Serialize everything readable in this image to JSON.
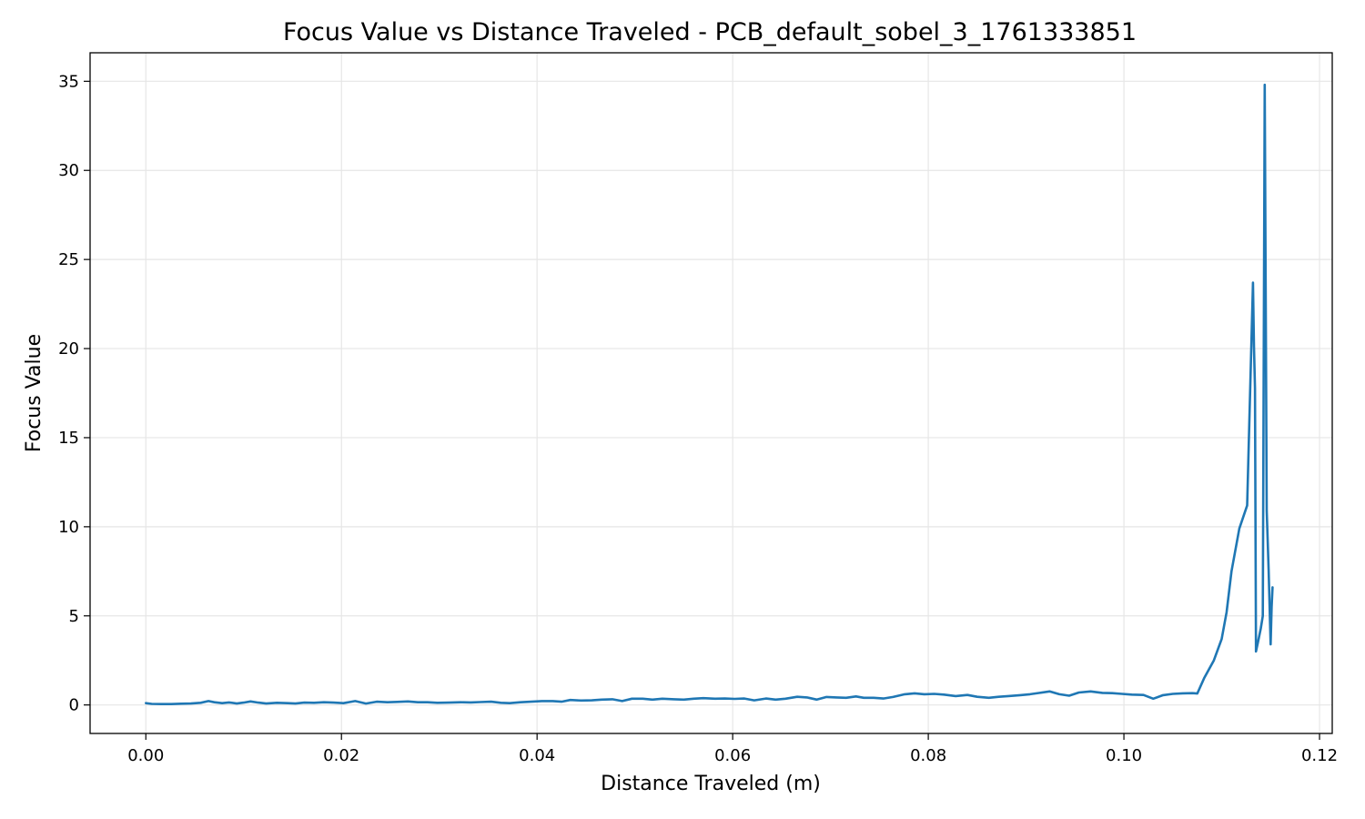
{
  "chart_data": {
    "type": "line",
    "title": "Focus Value vs Distance Traveled - PCB_default_sobel_3_1761333851",
    "xlabel": "Distance Traveled (m)",
    "ylabel": "Focus Value",
    "xlim": [
      -0.0057,
      0.1213
    ],
    "ylim": [
      -1.6,
      36.6
    ],
    "grid": true,
    "x_ticks": [
      0.0,
      0.02,
      0.04,
      0.06,
      0.08,
      0.1,
      0.12
    ],
    "x_tick_labels": [
      "0.00",
      "0.02",
      "0.04",
      "0.06",
      "0.08",
      "0.10",
      "0.12"
    ],
    "y_ticks": [
      0,
      5,
      10,
      15,
      20,
      25,
      30,
      35
    ],
    "y_tick_labels": [
      "0",
      "5",
      "10",
      "15",
      "20",
      "25",
      "30",
      "35"
    ],
    "colors": {
      "line": "#1f77b4",
      "grid": "#e6e6e6",
      "axes": "#000000"
    },
    "series": [
      {
        "x": [
          0.0,
          0.0006,
          0.0016,
          0.0026,
          0.0036,
          0.0046,
          0.0056,
          0.0064,
          0.007,
          0.0078,
          0.0085,
          0.0093,
          0.01,
          0.0107,
          0.0115,
          0.0123,
          0.0134,
          0.0145,
          0.0153,
          0.0162,
          0.0172,
          0.0182,
          0.0192,
          0.0202,
          0.0214,
          0.0225,
          0.0236,
          0.0247,
          0.0257,
          0.0268,
          0.0278,
          0.0288,
          0.0298,
          0.031,
          0.0322,
          0.0332,
          0.0342,
          0.0353,
          0.0363,
          0.0372,
          0.0383,
          0.0394,
          0.0405,
          0.0416,
          0.0425,
          0.0434,
          0.0445,
          0.0456,
          0.0466,
          0.0477,
          0.0487,
          0.0497,
          0.0508,
          0.0518,
          0.0528,
          0.054,
          0.055,
          0.056,
          0.057,
          0.0582,
          0.0592,
          0.0602,
          0.0612,
          0.0622,
          0.0634,
          0.0644,
          0.0654,
          0.0666,
          0.0676,
          0.0686,
          0.0696,
          0.0706,
          0.0716,
          0.0726,
          0.0734,
          0.0744,
          0.0754,
          0.0764,
          0.0776,
          0.0786,
          0.0796,
          0.0806,
          0.0816,
          0.0828,
          0.084,
          0.085,
          0.0862,
          0.0872,
          0.0882,
          0.0894,
          0.0904,
          0.0914,
          0.0924,
          0.0934,
          0.0944,
          0.0954,
          0.0966,
          0.0978,
          0.0988,
          0.0998,
          0.1008,
          0.102,
          0.103,
          0.104,
          0.105,
          0.106,
          0.107,
          0.1075,
          0.1082,
          0.1092,
          0.11,
          0.1105,
          0.111,
          0.1118,
          0.1126,
          0.1132,
          0.1133,
          0.1134,
          0.1135,
          0.1137,
          0.114,
          0.1142,
          0.1144,
          0.1146,
          0.1148,
          0.115,
          0.1151,
          0.1152
        ],
        "y": [
          0.1,
          0.06,
          0.05,
          0.05,
          0.07,
          0.08,
          0.12,
          0.22,
          0.15,
          0.1,
          0.14,
          0.08,
          0.13,
          0.2,
          0.13,
          0.08,
          0.12,
          0.1,
          0.08,
          0.13,
          0.12,
          0.15,
          0.13,
          0.1,
          0.22,
          0.08,
          0.18,
          0.15,
          0.17,
          0.2,
          0.15,
          0.15,
          0.12,
          0.13,
          0.15,
          0.14,
          0.16,
          0.18,
          0.12,
          0.1,
          0.15,
          0.18,
          0.22,
          0.22,
          0.18,
          0.28,
          0.25,
          0.26,
          0.3,
          0.32,
          0.22,
          0.35,
          0.35,
          0.3,
          0.35,
          0.32,
          0.3,
          0.35,
          0.38,
          0.35,
          0.36,
          0.34,
          0.36,
          0.26,
          0.36,
          0.3,
          0.35,
          0.46,
          0.42,
          0.3,
          0.45,
          0.42,
          0.4,
          0.48,
          0.4,
          0.4,
          0.36,
          0.45,
          0.6,
          0.65,
          0.6,
          0.62,
          0.58,
          0.5,
          0.56,
          0.46,
          0.4,
          0.46,
          0.5,
          0.55,
          0.6,
          0.68,
          0.76,
          0.6,
          0.52,
          0.7,
          0.76,
          0.68,
          0.66,
          0.62,
          0.58,
          0.56,
          0.35,
          0.55,
          0.62,
          0.65,
          0.66,
          0.64,
          1.5,
          2.5,
          3.7,
          5.2,
          7.5,
          9.9,
          11.2,
          23.7,
          20.1,
          17.8,
          3.0,
          3.5,
          4.3,
          5.0,
          34.8,
          10.9,
          7.6,
          3.4,
          5.5,
          6.6
        ]
      }
    ]
  }
}
